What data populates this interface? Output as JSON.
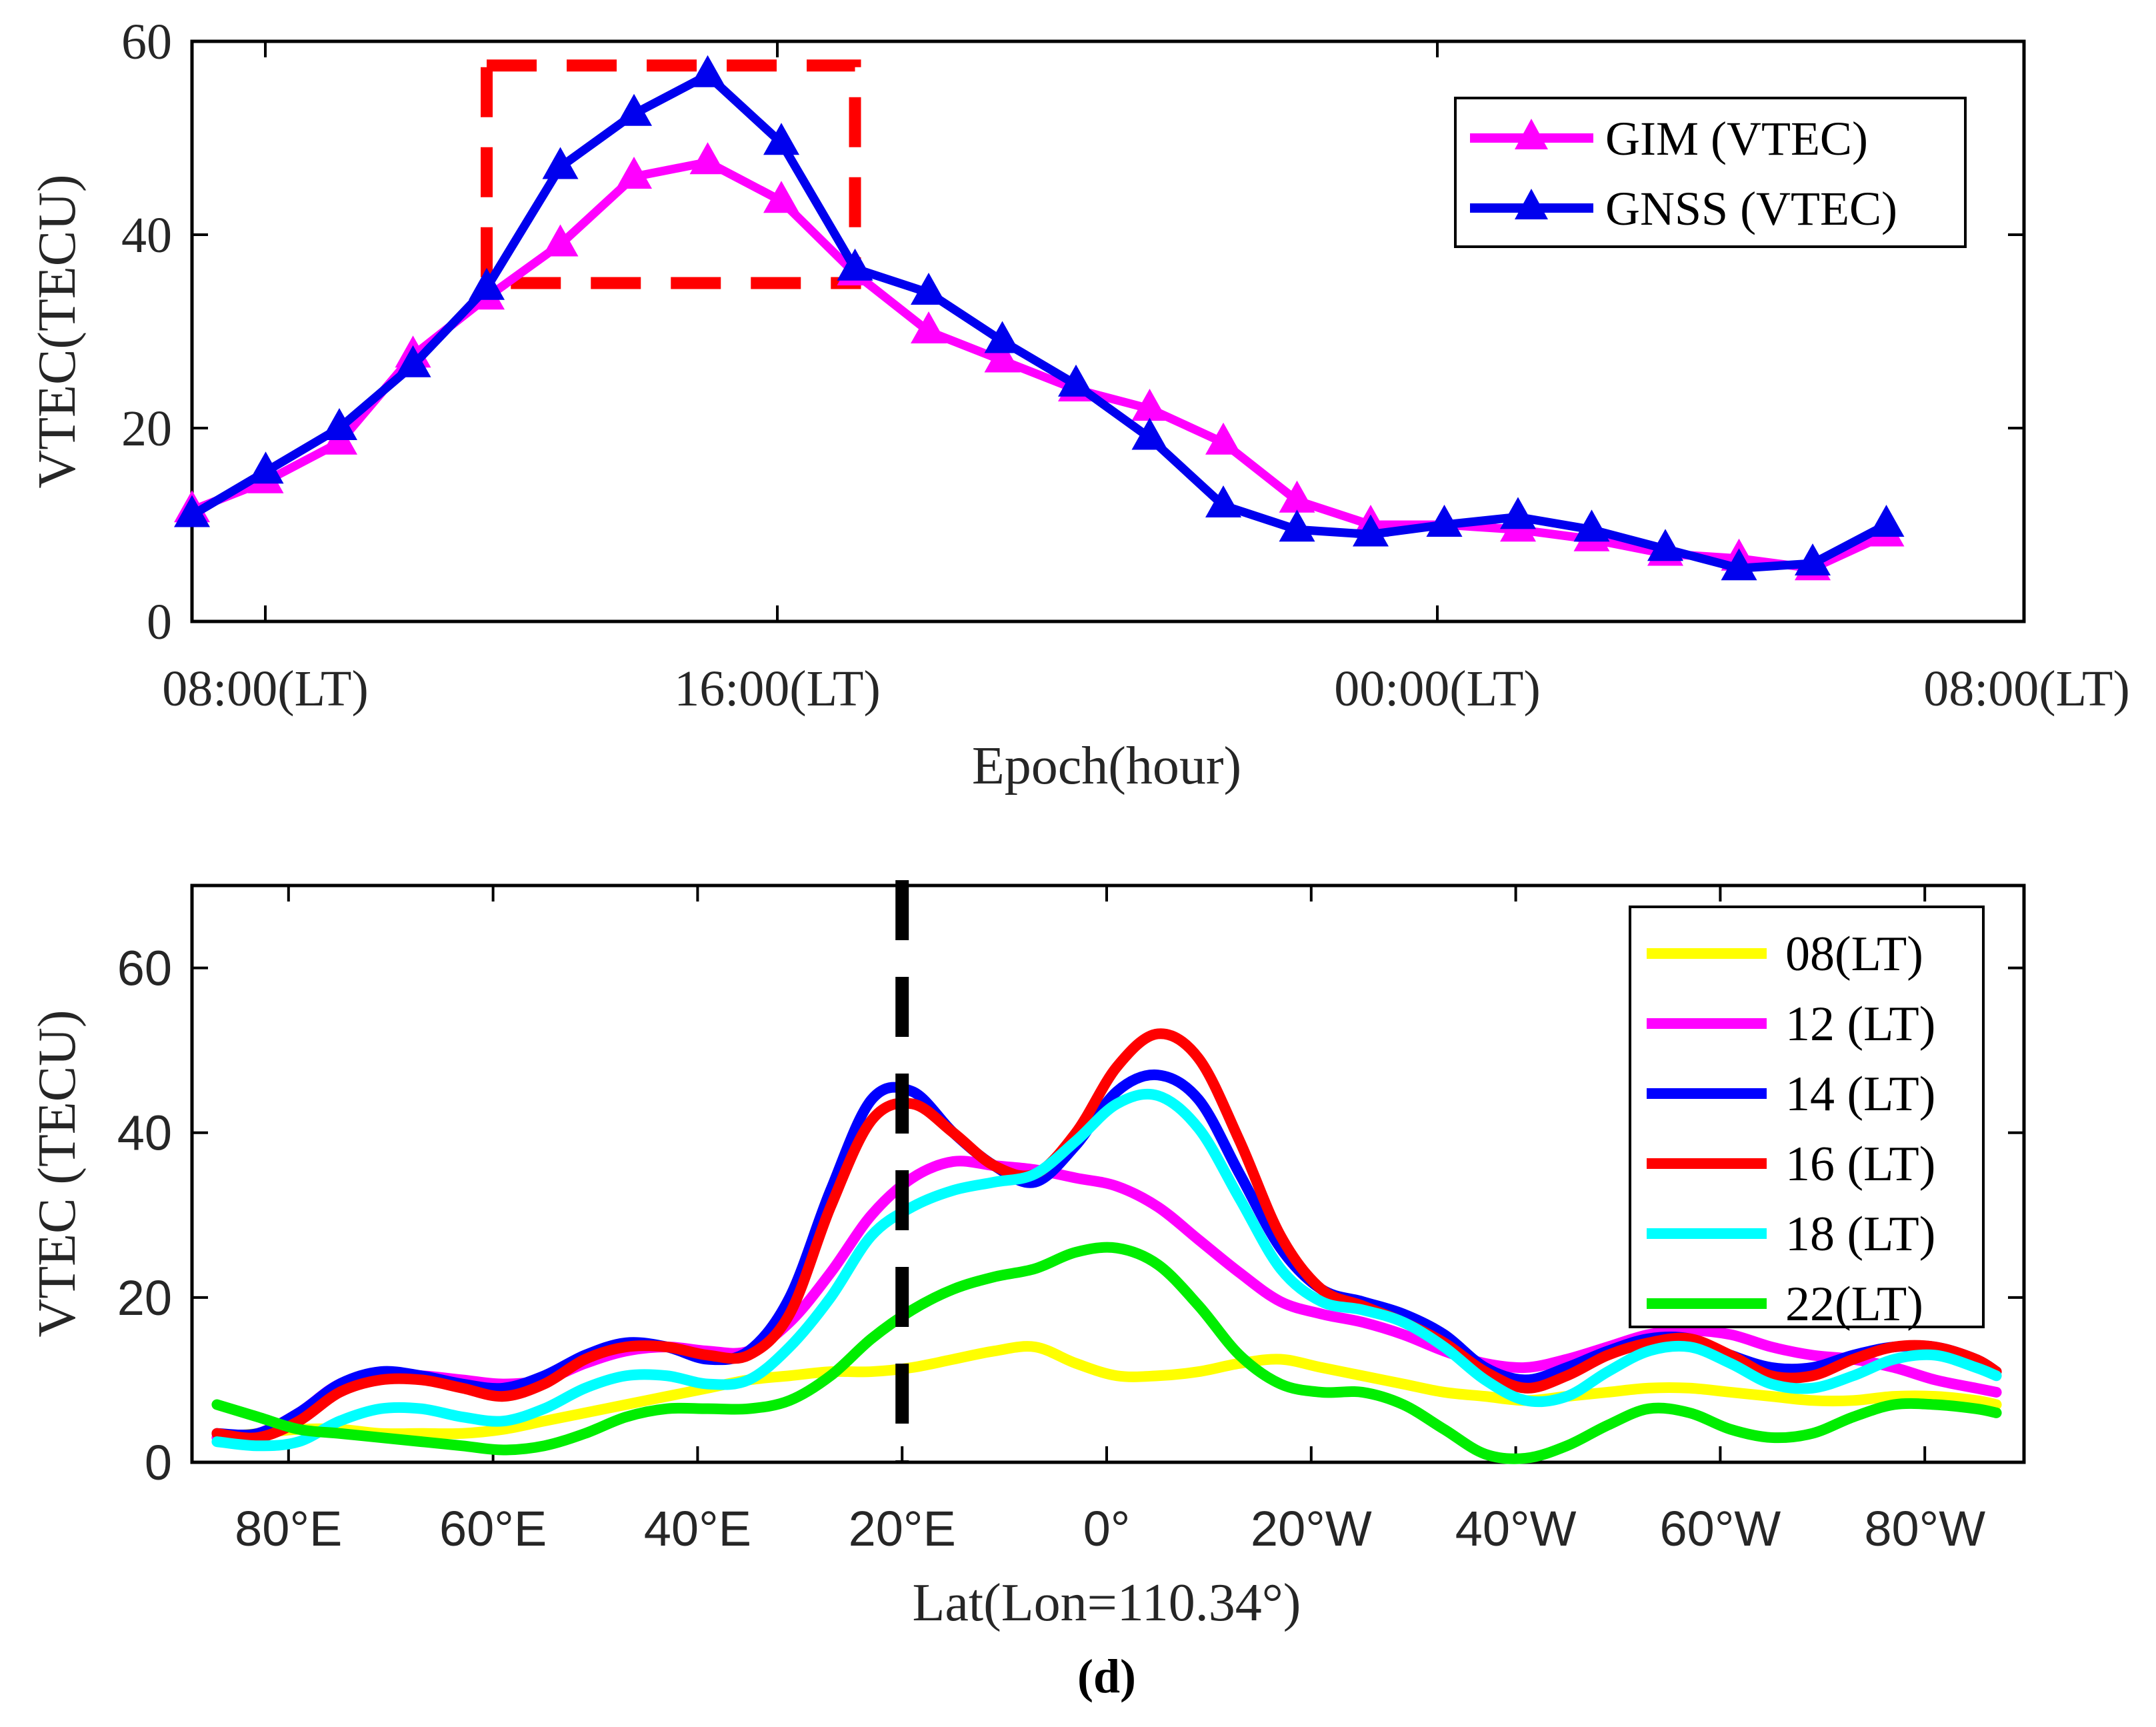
{
  "chart_data": [
    {
      "type": "line",
      "ylabel": "VTEC(TECU)",
      "xlabel": "Epoch(hour)",
      "ylim": [
        0,
        60
      ],
      "yticks": [
        0,
        20,
        40,
        60
      ],
      "xlim": [
        7,
        31
      ],
      "xticks": [
        {
          "value": 8,
          "label": "08:00(LT)"
        },
        {
          "value": 15,
          "label": "16:00(LT)"
        },
        {
          "value": 24,
          "label": "00:00(LT)"
        },
        {
          "value": 32,
          "label": "08:00(LT)"
        }
      ],
      "x": [
        7,
        8,
        9,
        10,
        11,
        12,
        13,
        14,
        15,
        16,
        17,
        18,
        19,
        20,
        21,
        22,
        23,
        24,
        25,
        26,
        27,
        28,
        29,
        30
      ],
      "series": [
        {
          "name": "GIM (VTEC)",
          "color": "#ff00ff",
          "values": [
            11.5,
            14.5,
            18.5,
            27.5,
            33.5,
            39,
            46,
            47.5,
            43.5,
            36,
            30,
            27,
            24,
            22,
            18.5,
            12.5,
            10,
            10,
            9.5,
            8.5,
            7,
            6.5,
            5.5,
            9
          ]
        },
        {
          "name": "GNSS (VTEC)",
          "color": "#0000ee",
          "values": [
            11,
            15.5,
            20,
            26.5,
            34.5,
            47,
            52.5,
            56.5,
            49.5,
            36.5,
            34,
            29,
            24.5,
            19,
            12,
            9.5,
            9,
            10,
            10.8,
            9.5,
            7.5,
            5.5,
            6,
            10
          ]
        }
      ],
      "annotation": {
        "type": "dashed-box",
        "color": "#ff0000",
        "x_range": [
          11,
          16
        ],
        "y_range": [
          35,
          57.5
        ]
      }
    },
    {
      "type": "line",
      "ylabel": "VTEC (TECU)",
      "xlabel": "Lat(Lon=110.34°)",
      "caption": "(d)",
      "ylim": [
        0,
        70
      ],
      "yticks": [
        0,
        20,
        40,
        60
      ],
      "xlim": [
        -90,
        88
      ],
      "xticks": [
        {
          "value": -80,
          "label": "80°E"
        },
        {
          "value": -60,
          "label": "60°E"
        },
        {
          "value": -40,
          "label": "40°E"
        },
        {
          "value": -20,
          "label": "20°E"
        },
        {
          "value": 0,
          "label": "0°"
        },
        {
          "value": 20,
          "label": "20°W"
        },
        {
          "value": 40,
          "label": "40°W"
        },
        {
          "value": 60,
          "label": "60°W"
        },
        {
          "value": 80,
          "label": "80°W"
        }
      ],
      "x": [
        -87,
        -83,
        -79,
        -75,
        -71,
        -67,
        -63,
        -59,
        -55,
        -51,
        -47,
        -43,
        -39,
        -35,
        -31,
        -27,
        -23,
        -19,
        -15,
        -11,
        -7,
        -3,
        1,
        5,
        9,
        13,
        17,
        21,
        25,
        29,
        33,
        37,
        41,
        45,
        49,
        53,
        57,
        61,
        65,
        69,
        73,
        77,
        81,
        85,
        87
      ],
      "series": [
        {
          "name": "08(LT)",
          "color": "#ffff00",
          "values": [
            3,
            3.5,
            4,
            4,
            3.5,
            3.5,
            3.5,
            4,
            5,
            6,
            7,
            8,
            9,
            10,
            10.5,
            11,
            11,
            11.5,
            12.5,
            13.5,
            14,
            12,
            10.5,
            10.5,
            11,
            12,
            12.5,
            11.5,
            10.5,
            9.5,
            8.5,
            8,
            7.5,
            8,
            8.5,
            9,
            9,
            8.5,
            8,
            7.5,
            7.5,
            8,
            8,
            7.5,
            7
          ]
        },
        {
          "name": "12 (LT)",
          "color": "#ff00ff",
          "values": [
            3,
            3.5,
            6,
            9.5,
            10.5,
            10.5,
            10,
            9.5,
            10,
            12,
            13.5,
            14,
            13.5,
            13.5,
            17,
            23,
            30,
            34.5,
            36.5,
            36,
            35.5,
            34.5,
            33.5,
            31,
            27,
            23,
            19.5,
            18,
            17,
            15.5,
            13.5,
            12,
            11.5,
            12.5,
            14,
            15.5,
            16,
            15.5,
            14,
            13,
            12.5,
            11.5,
            10,
            9,
            8.5
          ]
        },
        {
          "name": "14 (LT)",
          "color": "#0000ff",
          "values": [
            3.5,
            3.5,
            6,
            9.5,
            11,
            10.5,
            9.5,
            9,
            10.5,
            13,
            14.5,
            14,
            12.5,
            13.5,
            20,
            33,
            44,
            45,
            40,
            36,
            34,
            38.5,
            45,
            47,
            44,
            35,
            26,
            21,
            19.5,
            18,
            15.5,
            11.5,
            10,
            11.5,
            13.5,
            15,
            15,
            13,
            11.5,
            11.5,
            13,
            14,
            14,
            12.5,
            11
          ]
        },
        {
          "name": "16 (LT)",
          "color": "#ff0000",
          "values": [
            3.5,
            3,
            5,
            8.5,
            10,
            10,
            9,
            8,
            9.5,
            12.5,
            14,
            14,
            13,
            13,
            18,
            31,
            41.5,
            43.5,
            40,
            36,
            35,
            40,
            48,
            52,
            49,
            39,
            27.5,
            21,
            19,
            17,
            14.5,
            11,
            9,
            10.5,
            13,
            14.5,
            15,
            13,
            10.5,
            10.5,
            12.5,
            14,
            14,
            12.5,
            11
          ]
        },
        {
          "name": "18 (LT)",
          "color": "#00ffff",
          "values": [
            2.5,
            2,
            2.5,
            5,
            6.5,
            6.5,
            5.5,
            5,
            6.5,
            9,
            10.5,
            10.5,
            9.5,
            10,
            14,
            20,
            27.5,
            31,
            33,
            34,
            35,
            39,
            43.5,
            44.5,
            40.5,
            32,
            23.5,
            19.5,
            18.5,
            17,
            14,
            10,
            7.5,
            8,
            11,
            13.5,
            14,
            12,
            9.5,
            9,
            10.5,
            12.5,
            13,
            11.5,
            10.5
          ]
        },
        {
          "name": "22(LT)",
          "color": "#00ee00",
          "values": [
            7,
            5.5,
            4,
            3.5,
            3,
            2.5,
            2,
            1.5,
            2,
            3.5,
            5.5,
            6.5,
            6.5,
            6.5,
            7.5,
            10.5,
            15,
            18.5,
            21,
            22.5,
            23.5,
            25.5,
            26,
            24,
            19,
            13,
            9.5,
            8.5,
            8.5,
            7,
            4,
            1,
            0.5,
            2,
            4.5,
            6.5,
            6,
            4,
            3,
            3.5,
            5.5,
            7,
            7,
            6.5,
            6
          ]
        }
      ],
      "annotation": {
        "type": "dashed-vline",
        "color": "#000000",
        "x": -20
      }
    }
  ]
}
